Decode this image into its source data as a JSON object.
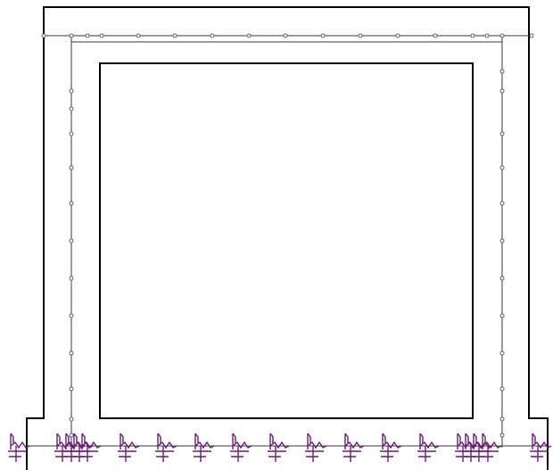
{
  "drawing": {
    "colors": {
      "outline": "#000000",
      "rebar": "#3a3a3a",
      "spring_support": "#6b1a7a",
      "background": "#ffffff"
    },
    "support_symbol": "spring-support-icon",
    "node_symbol": "node-marker-icon"
  }
}
